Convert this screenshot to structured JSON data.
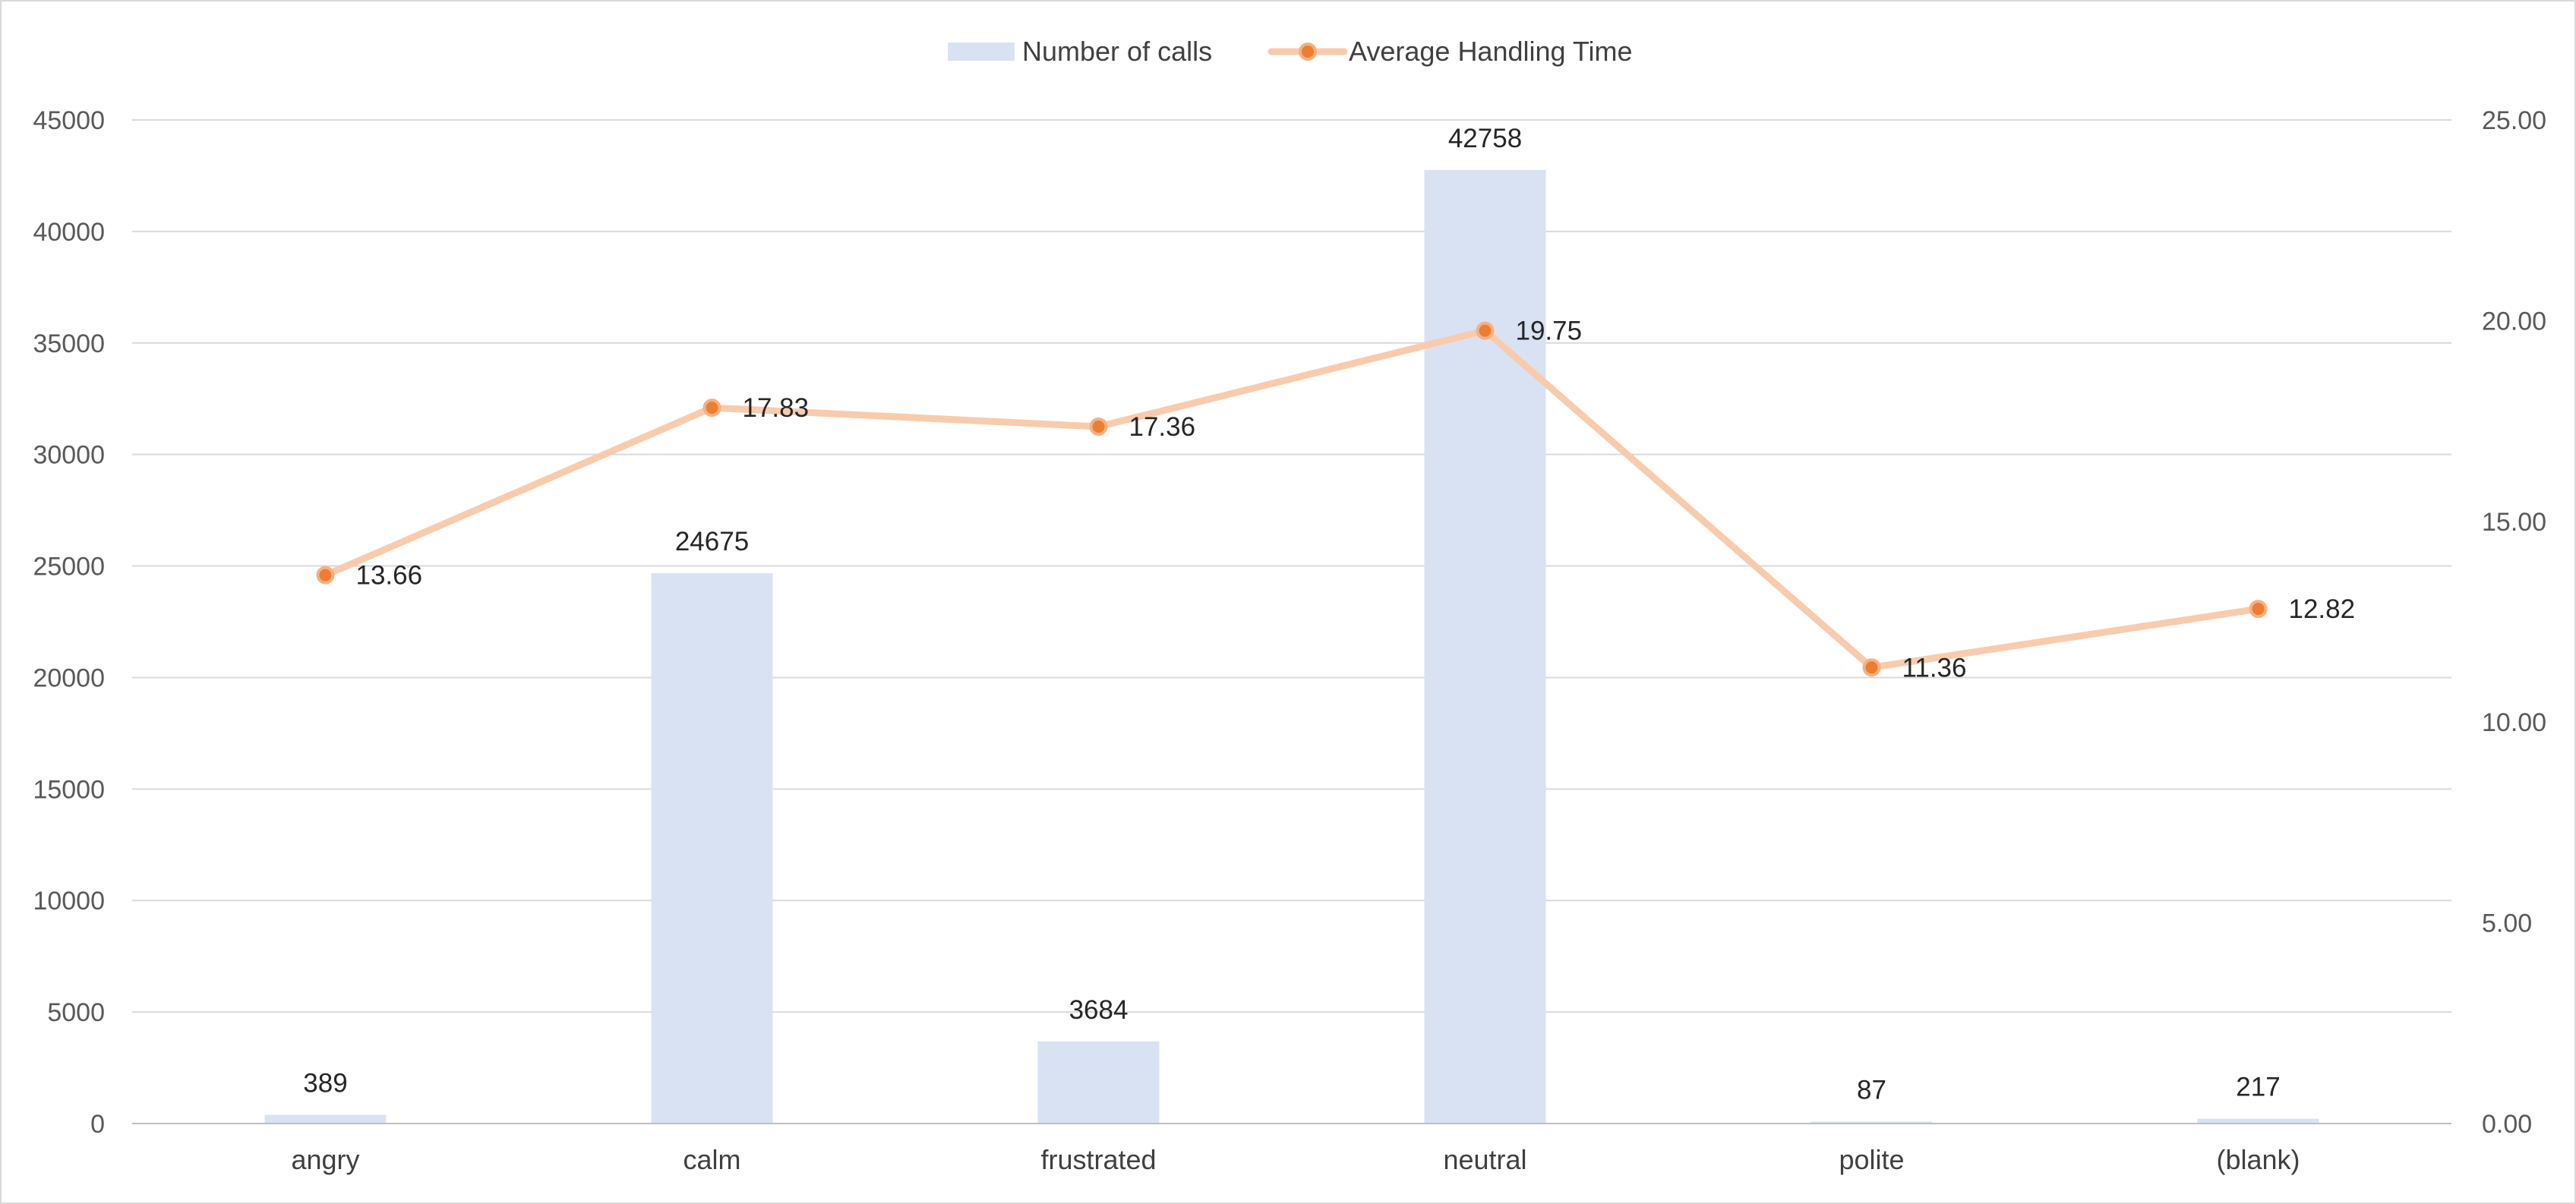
{
  "colors": {
    "bar": "#d9e2f3",
    "line": "#f8cbad",
    "marker": "#ed7d31",
    "grid": "#d9d9d9",
    "frame": "#d9d9d9"
  },
  "chart_data": {
    "type": "bar",
    "title": "",
    "categories": [
      "angry",
      "calm",
      "frustrated",
      "neutral",
      "polite",
      "(blank)"
    ],
    "series": [
      {
        "name": "Number of calls",
        "type": "bar",
        "axis": "left",
        "values": [
          389,
          24675,
          3684,
          42758,
          87,
          217
        ],
        "labels": [
          "389",
          "24675",
          "3684",
          "42758",
          "87",
          "217"
        ]
      },
      {
        "name": "Average Handling Time",
        "type": "line",
        "axis": "right",
        "values": [
          13.66,
          17.83,
          17.36,
          19.75,
          11.36,
          12.82
        ],
        "labels": [
          "13.66",
          "17.83",
          "17.36",
          "19.75",
          "11.36",
          "12.82"
        ]
      }
    ],
    "y_left": {
      "ylim": [
        0,
        45000
      ],
      "ticks": [
        "0",
        "5000",
        "10000",
        "15000",
        "20000",
        "25000",
        "30000",
        "35000",
        "40000",
        "45000"
      ]
    },
    "y_right": {
      "ylim": [
        0,
        25
      ],
      "ticks": [
        "0.00",
        "5.00",
        "10.00",
        "15.00",
        "20.00",
        "25.00"
      ]
    },
    "grid": true,
    "legend_position": "top-center"
  }
}
